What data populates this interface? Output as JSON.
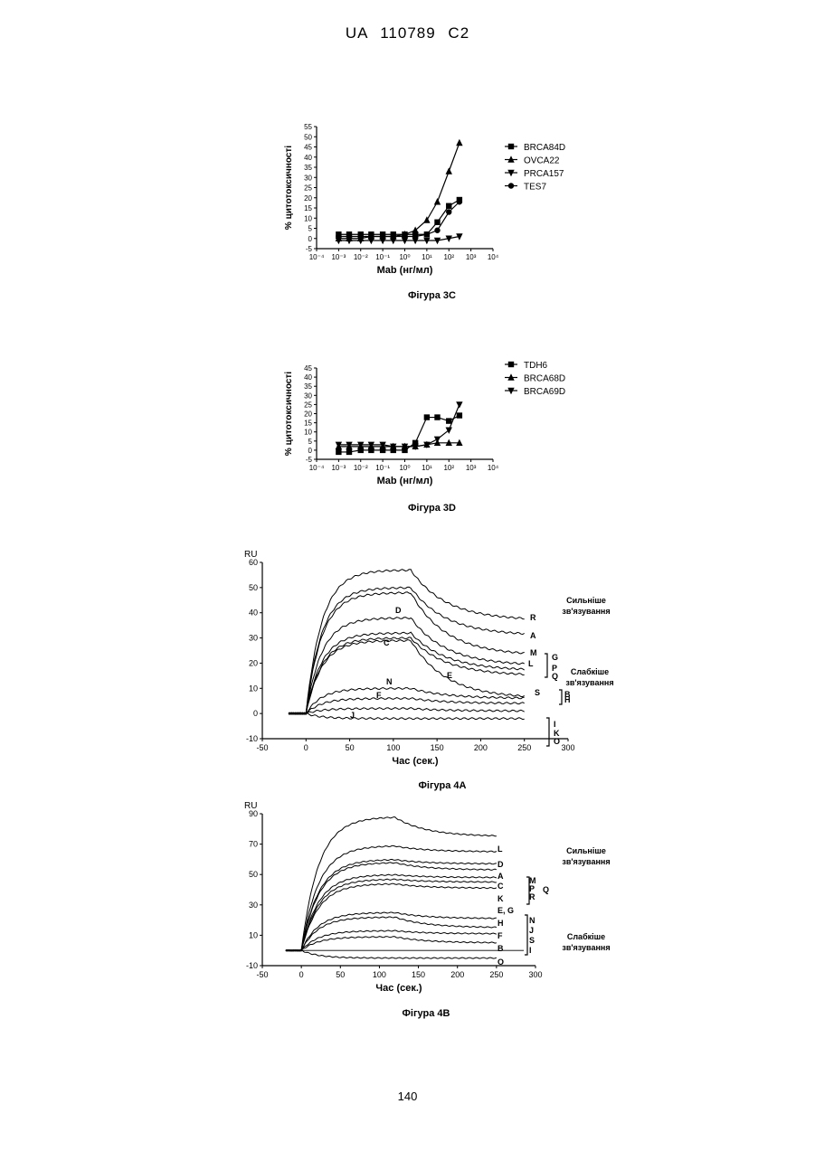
{
  "header": "UA   110789   C2",
  "page_number": "140",
  "chart_data": [
    {
      "id": "fig3c",
      "type": "line",
      "caption": "Фігура 3С",
      "ylabel": "% цитотоксичності",
      "xlabel": "Mab (нг/мл)",
      "xscale": "log",
      "xlim": [
        0.0001,
        10000
      ],
      "xticks": [
        "10⁻⁴",
        "10⁻³",
        "10⁻²",
        "10⁻¹",
        "10⁰",
        "10¹",
        "10²",
        "10³",
        "10⁴"
      ],
      "ylim": [
        -5,
        55
      ],
      "yticks": [
        -5,
        0,
        5,
        10,
        15,
        20,
        25,
        30,
        35,
        40,
        45,
        50,
        55
      ],
      "legend_position": "right",
      "series": [
        {
          "name": "BRCA84D",
          "marker": "square",
          "x": [
            0.001,
            0.003,
            0.01,
            0.03,
            0.1,
            0.3,
            1,
            3,
            10,
            30,
            100,
            300
          ],
          "y": [
            2,
            2,
            2,
            2,
            2,
            2,
            2,
            2,
            2,
            8,
            16,
            19
          ]
        },
        {
          "name": "OVCA22",
          "marker": "triangle-up",
          "x": [
            0.001,
            0.003,
            0.01,
            0.03,
            0.1,
            0.3,
            1,
            3,
            10,
            30,
            100,
            300
          ],
          "y": [
            0,
            0,
            0,
            1,
            1,
            1,
            2,
            4,
            9,
            18,
            33,
            47
          ]
        },
        {
          "name": "PRCA157",
          "marker": "triangle-down",
          "x": [
            0.001,
            0.003,
            0.01,
            0.03,
            0.1,
            0.3,
            1,
            3,
            10,
            30,
            100,
            300
          ],
          "y": [
            -1,
            -1,
            -1,
            -1,
            -1,
            -1,
            -1,
            -1,
            -1,
            -1,
            0,
            1
          ]
        },
        {
          "name": "TES7",
          "marker": "circle",
          "x": [
            0.001,
            0.003,
            0.01,
            0.03,
            0.1,
            0.3,
            1,
            3,
            10,
            30,
            100,
            300
          ],
          "y": [
            1,
            1,
            1,
            1,
            1,
            1,
            1,
            1,
            2,
            4,
            13,
            18
          ]
        }
      ]
    },
    {
      "id": "fig3d",
      "type": "line",
      "caption": "Фігура 3D",
      "ylabel": "% цитотоксичності",
      "xlabel": "Mab (нг/мл)",
      "xscale": "log",
      "xlim": [
        0.0001,
        10000
      ],
      "xticks": [
        "10⁻⁴",
        "10⁻³",
        "10⁻²",
        "10⁻¹",
        "10⁰",
        "10¹",
        "10²",
        "10³",
        "10⁴"
      ],
      "ylim": [
        -5,
        45
      ],
      "yticks": [
        -5,
        0,
        5,
        10,
        15,
        20,
        25,
        30,
        35,
        40,
        45
      ],
      "legend_position": "right",
      "series": [
        {
          "name": "TDH6",
          "marker": "square",
          "x": [
            0.001,
            0.003,
            0.01,
            0.03,
            0.1,
            0.3,
            1,
            3,
            10,
            30,
            100,
            300
          ],
          "y": [
            -1,
            -1,
            0,
            0,
            0,
            0,
            0,
            4,
            18,
            18,
            16,
            19
          ]
        },
        {
          "name": "BRCA68D",
          "marker": "triangle-up",
          "x": [
            0.001,
            0.003,
            0.01,
            0.03,
            0.1,
            0.3,
            1,
            3,
            10,
            30,
            100,
            300
          ],
          "y": [
            2,
            2,
            2,
            2,
            2,
            2,
            2,
            2,
            3,
            4,
            4,
            4
          ]
        },
        {
          "name": "BRCA69D",
          "marker": "triangle-down",
          "x": [
            0.001,
            0.003,
            0.01,
            0.03,
            0.1,
            0.3,
            1,
            3,
            10,
            30,
            100,
            300
          ],
          "y": [
            3,
            3,
            3,
            3,
            3,
            2,
            2,
            2,
            3,
            6,
            11,
            25
          ]
        }
      ]
    },
    {
      "id": "fig4a",
      "type": "line",
      "caption": "Фігура 4А",
      "ylabel": "RU",
      "xlabel": "Час (сек.)",
      "xlim": [
        -50,
        300
      ],
      "xticks": [
        -50,
        0,
        50,
        100,
        150,
        200,
        250,
        300
      ],
      "ylim": [
        -10,
        60
      ],
      "yticks": [
        -10,
        0,
        10,
        20,
        30,
        40,
        50,
        60
      ],
      "annotation_strong": "Сильніше зв'язування",
      "annotation_weak": "Слабкіше зв'язування",
      "end_labels": [
        "R",
        "A",
        "M",
        "L",
        "G",
        "P",
        "Q",
        "S",
        "B",
        "H",
        "I",
        "K",
        "O"
      ],
      "inline_labels": [
        "D",
        "C",
        "N",
        "F",
        "E",
        "J"
      ],
      "series": [
        {
          "name": "R",
          "plateau": 57,
          "end": 37
        },
        {
          "name": "A",
          "plateau": 50,
          "end": 31
        },
        {
          "name": "M",
          "plateau": 48,
          "end": 23
        },
        {
          "name": "D",
          "plateau": 38,
          "end": 19
        },
        {
          "name": "L",
          "plateau": 32,
          "end": 17
        },
        {
          "name": "C",
          "plateau": 30,
          "end": 15
        },
        {
          "name": "E",
          "plateau": 29,
          "end": 6
        },
        {
          "name": "N",
          "plateau": 10,
          "end": 6
        },
        {
          "name": "F",
          "plateau": 6,
          "end": 4
        },
        {
          "name": "J",
          "plateau": 2,
          "end": 1
        },
        {
          "name": "O",
          "plateau": -2,
          "end": -2
        }
      ]
    },
    {
      "id": "fig4b",
      "type": "line",
      "caption": "Фігура 4В",
      "ylabel": "RU",
      "xlabel": "Час (сек.)",
      "xlim": [
        -50,
        300
      ],
      "xticks": [
        -50,
        0,
        50,
        100,
        150,
        200,
        250,
        300
      ],
      "ylim": [
        -10,
        90
      ],
      "yticks": [
        -10,
        10,
        30,
        50,
        70,
        90
      ],
      "annotation_strong": "Сильніше зв'язування",
      "annotation_weak": "Слабкіше зв'язування",
      "end_labels": [
        "L",
        "D",
        "A",
        "C",
        "K",
        "E, G",
        "H",
        "F",
        "B",
        "O"
      ],
      "bracket_labels_1": [
        "M",
        "P",
        "R"
      ],
      "bracket_q": "Q",
      "bracket_labels_2": [
        "N",
        "J",
        "S",
        "I"
      ],
      "series": [
        {
          "name": "L",
          "plateau": 88,
          "end": 75
        },
        {
          "name": "D",
          "plateau": 69,
          "end": 65
        },
        {
          "name": "A",
          "plateau": 60,
          "end": 57
        },
        {
          "name": "C",
          "plateau": 58,
          "end": 53
        },
        {
          "name": "M",
          "plateau": 50,
          "end": 48
        },
        {
          "name": "K",
          "plateau": 47,
          "end": 45
        },
        {
          "name": "E, G",
          "plateau": 44,
          "end": 41
        },
        {
          "name": "H",
          "plateau": 25,
          "end": 21
        },
        {
          "name": "F",
          "plateau": 22,
          "end": 15
        },
        {
          "name": "N",
          "plateau": 13,
          "end": 11
        },
        {
          "name": "B",
          "plateau": 9,
          "end": 5
        },
        {
          "name": "O",
          "plateau": -5,
          "end": -5
        }
      ]
    }
  ]
}
